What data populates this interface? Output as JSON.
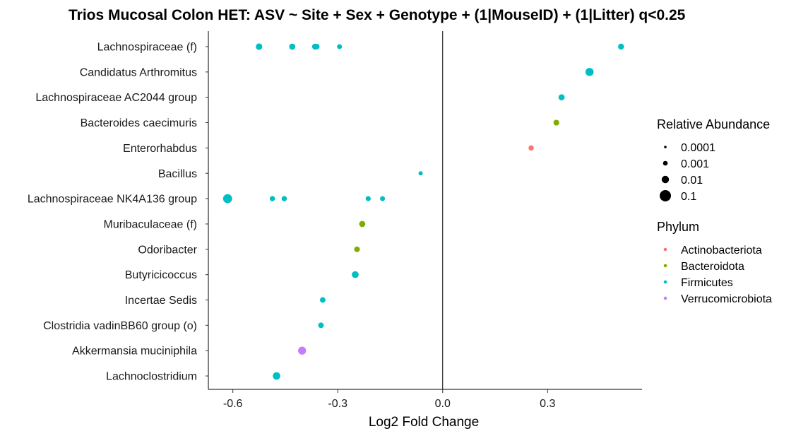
{
  "chart_data": {
    "type": "scatter",
    "title": "Trios Mucosal Colon HET: ASV ~ Site + Sex + Genotype + (1|MouseID) + (1|Litter) q<0.25",
    "xlabel": "Log2 Fold Change",
    "ylabel": "",
    "xlim": [
      -0.67,
      0.57
    ],
    "x_ticks": [
      -0.6,
      -0.3,
      0.0,
      0.3
    ],
    "x_tick_labels": [
      "-0.6",
      "-0.3",
      "0.0",
      "0.3"
    ],
    "reference_line_x": 0,
    "grid": false,
    "legend_placement": "right",
    "categories": [
      "Lachnospiraceae (f)",
      "Candidatus Arthromitus",
      "Lachnospiraceae AC2044 group",
      "Bacteroides caecimuris",
      "Enterorhabdus",
      "Bacillus",
      "Lachnospiraceae NK4A136 group",
      "Muribaculaceae (f)",
      "Odoribacter",
      "Butyricicoccus",
      "Incertae Sedis",
      "Clostridia vadinBB60 group (o)",
      "Akkermansia muciniphila",
      "Lachnoclostridium"
    ],
    "size_legend": {
      "title": "Relative Abundance",
      "levels": [
        {
          "label": "0.0001",
          "value": 0.0001
        },
        {
          "label": "0.001",
          "value": 0.001
        },
        {
          "label": "0.01",
          "value": 0.01
        },
        {
          "label": "0.1",
          "value": 0.1
        }
      ]
    },
    "color_legend": {
      "title": "Phylum",
      "levels": [
        {
          "label": "Actinobacteriota",
          "color": "#F8766D"
        },
        {
          "label": "Bacteroidota",
          "color": "#7CAE00"
        },
        {
          "label": "Firmicutes",
          "color": "#00BFC4"
        },
        {
          "label": "Verrucomicrobiota",
          "color": "#C77CFF"
        }
      ]
    },
    "points": [
      {
        "category": "Lachnospiraceae (f)",
        "x": -0.525,
        "abundance": 0.002,
        "phylum": "Firmicutes"
      },
      {
        "category": "Lachnospiraceae (f)",
        "x": -0.43,
        "abundance": 0.0015,
        "phylum": "Firmicutes"
      },
      {
        "category": "Lachnospiraceae (f)",
        "x": -0.365,
        "abundance": 0.0012,
        "phylum": "Firmicutes"
      },
      {
        "category": "Lachnospiraceae (f)",
        "x": -0.36,
        "abundance": 0.0008,
        "phylum": "Firmicutes"
      },
      {
        "category": "Lachnospiraceae (f)",
        "x": -0.295,
        "abundance": 0.0004,
        "phylum": "Firmicutes"
      },
      {
        "category": "Lachnospiraceae (f)",
        "x": 0.51,
        "abundance": 0.0012,
        "phylum": "Firmicutes"
      },
      {
        "category": "Candidatus Arthromitus",
        "x": 0.42,
        "abundance": 0.012,
        "phylum": "Firmicutes"
      },
      {
        "category": "Lachnospiraceae AC2044 group",
        "x": 0.34,
        "abundance": 0.0015,
        "phylum": "Firmicutes"
      },
      {
        "category": "Bacteroides caecimuris",
        "x": 0.325,
        "abundance": 0.001,
        "phylum": "Bacteroidota"
      },
      {
        "category": "Enterorhabdus",
        "x": 0.253,
        "abundance": 0.0006,
        "phylum": "Actinobacteriota"
      },
      {
        "category": "Bacillus",
        "x": -0.063,
        "abundance": 0.0002,
        "phylum": "Firmicutes"
      },
      {
        "category": "Lachnospiraceae NK4A136 group",
        "x": -0.615,
        "abundance": 0.03,
        "phylum": "Firmicutes"
      },
      {
        "category": "Lachnospiraceae NK4A136 group",
        "x": -0.487,
        "abundance": 0.0006,
        "phylum": "Firmicutes"
      },
      {
        "category": "Lachnospiraceae NK4A136 group",
        "x": -0.453,
        "abundance": 0.0006,
        "phylum": "Firmicutes"
      },
      {
        "category": "Lachnospiraceae NK4A136 group",
        "x": -0.213,
        "abundance": 0.0005,
        "phylum": "Firmicutes"
      },
      {
        "category": "Lachnospiraceae NK4A136 group",
        "x": -0.172,
        "abundance": 0.0004,
        "phylum": "Firmicutes"
      },
      {
        "category": "Muribaculaceae (f)",
        "x": -0.23,
        "abundance": 0.0015,
        "phylum": "Bacteroidota"
      },
      {
        "category": "Odoribacter",
        "x": -0.245,
        "abundance": 0.0008,
        "phylum": "Bacteroidota"
      },
      {
        "category": "Butyricicoccus",
        "x": -0.25,
        "abundance": 0.003,
        "phylum": "Firmicutes"
      },
      {
        "category": "Incertae Sedis",
        "x": -0.343,
        "abundance": 0.0008,
        "phylum": "Firmicutes"
      },
      {
        "category": "Clostridia vadinBB60 group (o)",
        "x": -0.348,
        "abundance": 0.0008,
        "phylum": "Firmicutes"
      },
      {
        "category": "Akkermansia muciniphila",
        "x": -0.402,
        "abundance": 0.01,
        "phylum": "Verrucomicrobiota"
      },
      {
        "category": "Lachnoclostridium",
        "x": -0.475,
        "abundance": 0.006,
        "phylum": "Firmicutes"
      }
    ]
  }
}
